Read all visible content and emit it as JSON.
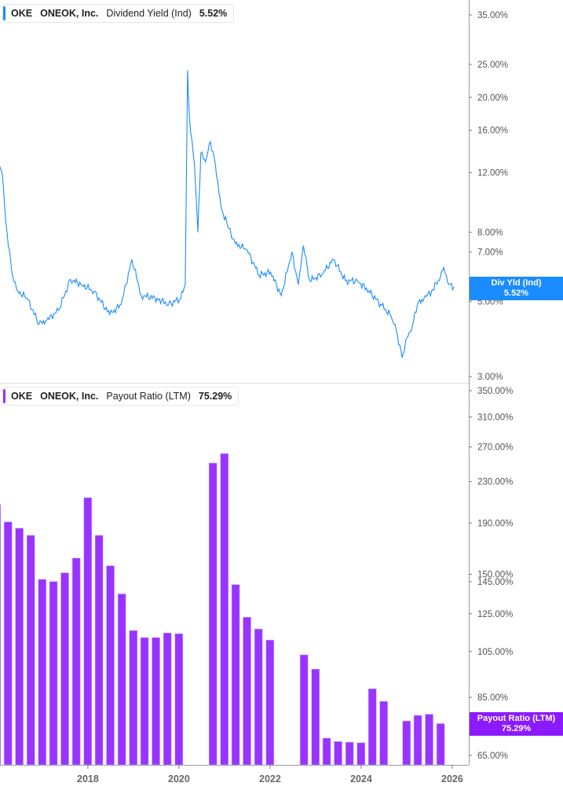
{
  "legend_top": {
    "ticker": "OKE",
    "company": "ONEOK, Inc.",
    "metric": "Dividend Yield (Ind)",
    "value": "5.52%",
    "color": "#1a8cff"
  },
  "legend_bottom": {
    "ticker": "OKE",
    "company": "ONEOK, Inc.",
    "metric": "Payout Ratio (LTM)",
    "value": "75.29%",
    "color": "#9933ff"
  },
  "callout_top": {
    "label": "Div Yld (Ind)",
    "value": "5.52%"
  },
  "callout_bottom": {
    "label": "Payout Ratio (LTM)",
    "value": "75.29%"
  },
  "chart_data": [
    {
      "type": "line",
      "series": [
        {
          "name": "Dividend Yield (Ind)",
          "color": "#1a8cff",
          "points": [
            [
              "2016-01-25",
              12.5
            ],
            [
              "2016-02-15",
              11.8
            ],
            [
              "2016-03-15",
              8.45
            ],
            [
              "2016-05-01",
              6.1
            ],
            [
              "2016-06-15",
              5.37
            ],
            [
              "2016-09-01",
              5.1
            ],
            [
              "2016-12-05",
              4.29
            ],
            [
              "2017-02-05",
              4.4
            ],
            [
              "2017-05-10",
              4.7
            ],
            [
              "2017-08-15",
              5.8
            ],
            [
              "2017-11-15",
              5.6
            ],
            [
              "2018-02-20",
              5.35
            ],
            [
              "2018-06-25",
              4.57
            ],
            [
              "2018-09-25",
              4.9
            ],
            [
              "2018-12-20",
              6.65
            ],
            [
              "2019-03-05",
              5.2
            ],
            [
              "2019-07-10",
              5.1
            ],
            [
              "2019-10-10",
              4.9
            ],
            [
              "2020-01-15",
              5.1
            ],
            [
              "2020-02-20",
              5.6
            ],
            [
              "2020-03-10",
              24.0
            ],
            [
              "2020-03-25",
              17.4
            ],
            [
              "2020-05-05",
              12.6
            ],
            [
              "2020-06-01",
              8.0
            ],
            [
              "2020-06-25",
              13.7
            ],
            [
              "2020-08-01",
              12.9
            ],
            [
              "2020-09-10",
              14.8
            ],
            [
              "2020-10-20",
              12.6
            ],
            [
              "2020-12-05",
              9.4
            ],
            [
              "2021-02-05",
              8.2
            ],
            [
              "2021-03-28",
              7.4
            ],
            [
              "2021-07-01",
              7.1
            ],
            [
              "2021-10-05",
              5.97
            ],
            [
              "2022-01-05",
              6.1
            ],
            [
              "2022-04-01",
              5.2
            ],
            [
              "2022-06-25",
              7.0
            ],
            [
              "2022-08-15",
              5.6
            ],
            [
              "2022-09-25",
              7.3
            ],
            [
              "2022-11-15",
              5.75
            ],
            [
              "2023-02-20",
              6.0
            ],
            [
              "2023-05-25",
              6.65
            ],
            [
              "2023-08-28",
              5.75
            ],
            [
              "2023-12-01",
              5.75
            ],
            [
              "2024-03-01",
              5.37
            ],
            [
              "2024-06-05",
              4.9
            ],
            [
              "2024-08-20",
              4.57
            ],
            [
              "2024-10-10",
              4.1
            ],
            [
              "2024-11-25",
              3.41
            ],
            [
              "2025-01-01",
              3.9
            ],
            [
              "2025-02-15",
              4.22
            ],
            [
              "2025-03-28",
              4.9
            ],
            [
              "2025-05-20",
              5.1
            ],
            [
              "2025-07-20",
              5.37
            ],
            [
              "2025-09-10",
              5.75
            ],
            [
              "2025-10-25",
              6.3
            ],
            [
              "2025-12-05",
              5.6
            ],
            [
              "2026-01-15",
              5.52
            ]
          ]
        }
      ],
      "yscale": "log",
      "ylim": [
        3,
        38
      ],
      "yticks": [
        "3.00%",
        "5.00%",
        "7.00%",
        "8.00%",
        "12.00%",
        "16.00%",
        "20.00%",
        "25.00%",
        "35.00%"
      ],
      "ytick_values": [
        3,
        5,
        7,
        8,
        12,
        16,
        20,
        25,
        35
      ],
      "xlim": [
        "2016-01-01",
        "2026-05-15"
      ]
    },
    {
      "type": "bar",
      "series": [
        {
          "name": "Payout Ratio (LTM)",
          "color": "#9933ff"
        }
      ],
      "categories": [
        "2015-12-31",
        "2016-03-31",
        "2016-06-30",
        "2016-09-30",
        "2016-12-31",
        "2017-03-31",
        "2017-06-30",
        "2017-09-30",
        "2017-12-31",
        "2018-03-31",
        "2018-06-30",
        "2018-09-30",
        "2018-12-31",
        "2019-03-31",
        "2019-06-30",
        "2019-09-30",
        "2019-12-31",
        "2020-03-31",
        "2020-06-30",
        "2020-09-30",
        "2020-12-31",
        "2021-03-31",
        "2021-06-30",
        "2021-09-30",
        "2021-12-31",
        "2022-03-31",
        "2022-06-30",
        "2022-09-30",
        "2022-12-31",
        "2023-03-31",
        "2023-06-30",
        "2023-09-30",
        "2023-12-31",
        "2024-03-31",
        "2024-06-30",
        "2024-09-30",
        "2024-12-31",
        "2025-03-31",
        "2025-06-30",
        "2025-09-30"
      ],
      "values": [
        207,
        191,
        185.5,
        179.5,
        146.5,
        145,
        151,
        161.6,
        213.6,
        179.5,
        156,
        137,
        115.7,
        112,
        112,
        114.4,
        114,
        null,
        null,
        250.6,
        261.8,
        143,
        123,
        116.5,
        110.7,
        null,
        null,
        103.4,
        96.8,
        70.4,
        69.3,
        69.1,
        68.9,
        88.4,
        83.4,
        null,
        76.2,
        78.2,
        78.6,
        75.29
      ],
      "yscale": "log",
      "ylim": [
        62,
        360
      ],
      "yticks": [
        "65.00%",
        "85.00%",
        "105.00%",
        "125.00%",
        "145.00%",
        "150.00%",
        "190.00%",
        "230.00%",
        "270.00%",
        "310.00%",
        "350.00%"
      ],
      "ytick_values": [
        65,
        85,
        105,
        125,
        145,
        150,
        190,
        230,
        270,
        310,
        350
      ],
      "xticks": [
        "2018",
        "2020",
        "2022",
        "2024",
        "2026"
      ]
    }
  ]
}
